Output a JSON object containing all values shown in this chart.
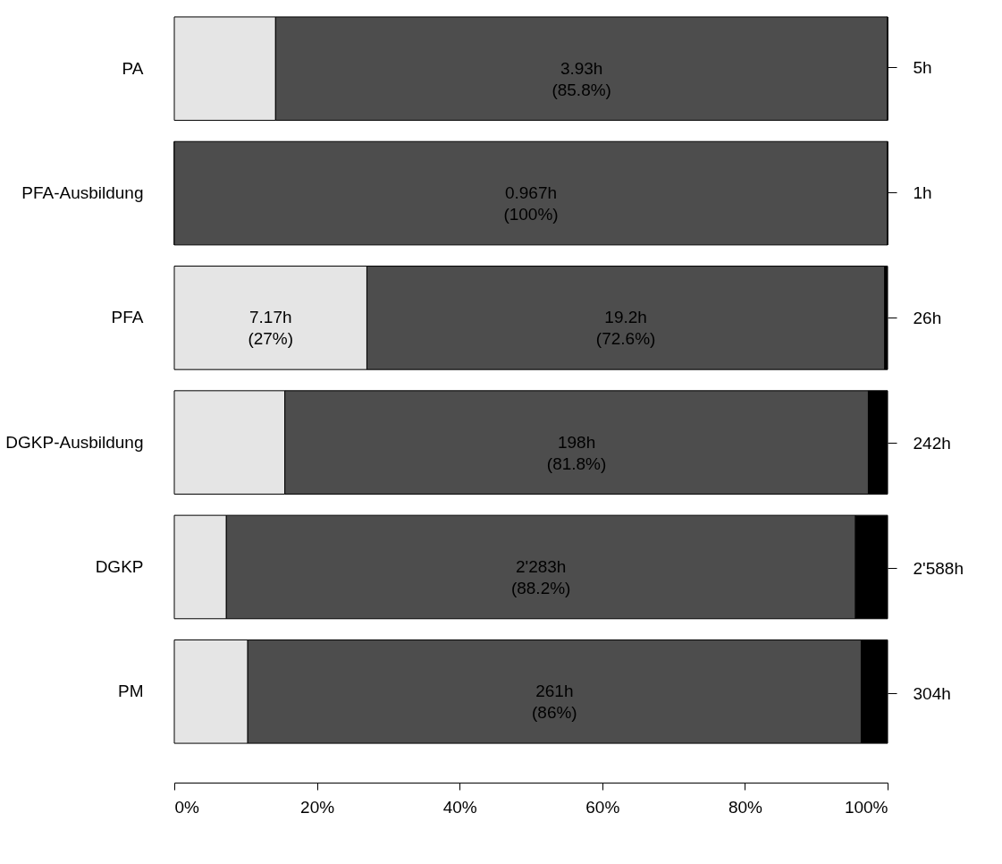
{
  "chart_data": {
    "type": "bar",
    "orientation": "horizontal",
    "stacked": true,
    "categories": [
      "PA",
      "PFA-Ausbildung",
      "PFA",
      "DGKP-Ausbildung",
      "DGKP",
      "PM"
    ],
    "series": [
      {
        "color": "#e5e5e5",
        "values": [
          14.2,
          0,
          27,
          15.5,
          7.3,
          10.3
        ],
        "value_labels": [
          null,
          null,
          "7.17h\n(27%)",
          null,
          null,
          null
        ]
      },
      {
        "color": "#4d4d4d",
        "values": [
          85.8,
          100,
          72.6,
          81.8,
          88.2,
          86
        ],
        "value_labels": [
          "3.93h\n(85.8%)",
          "0.967h\n(100%)",
          "19.2h\n(72.6%)",
          "198h\n(81.8%)",
          "2'283h\n(88.2%)",
          "261h\n(86%)"
        ]
      },
      {
        "color": "#000000",
        "values": [
          0,
          0,
          0.4,
          2.7,
          4.5,
          3.7
        ],
        "value_labels": [
          null,
          null,
          null,
          null,
          null,
          null
        ]
      }
    ],
    "annotations": [
      "5h",
      "1h",
      "26h",
      "242h",
      "2'588h",
      "304h"
    ],
    "xlim": [
      0,
      100
    ],
    "xticks": [
      {
        "value": 0,
        "label": "0%"
      },
      {
        "value": 20,
        "label": "20%"
      },
      {
        "value": 40,
        "label": "40%"
      },
      {
        "value": 60,
        "label": "60%"
      },
      {
        "value": 80,
        "label": "80%"
      },
      {
        "value": 100,
        "label": "100%"
      }
    ],
    "grid": false
  }
}
